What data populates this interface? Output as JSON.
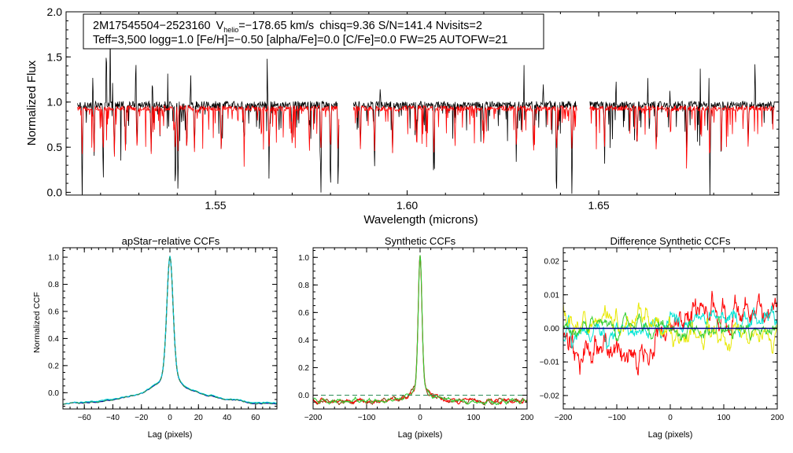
{
  "chart_data": [
    {
      "type": "line",
      "panel": "spectrum",
      "title": "",
      "xlabel": "Wavelength (microns)",
      "ylabel": "Normalized Flux",
      "xlim": [
        1.511,
        1.697
      ],
      "ylim": [
        -0.03,
        2.0
      ],
      "xticks": [
        1.55,
        1.6,
        1.65
      ],
      "xtick_labels": [
        "1.55",
        "1.60",
        "1.65"
      ],
      "yticks": [
        0.0,
        0.5,
        1.0,
        1.5,
        2.0
      ],
      "ytick_labels": [
        "0.0",
        "0.5",
        "1.0",
        "1.5",
        "2.0"
      ],
      "annotation": {
        "star_id": "2M17545504−2523160",
        "v_symbol": "V",
        "v_subscript": "helio",
        "v_value": "=−178.65 km/s",
        "rest_line1": "chisq=9.36  S/N=141.4  Nvisits=2",
        "line2": "Teff=3,500 logg=1.0 [Fe/H]=−0.50 [alpha/Fe]=0.0 [C/Fe]=0.0 FW=25 AUTOFW=21"
      },
      "chips": [
        [
          1.514,
          1.5822
        ],
        [
          1.586,
          1.6443
        ],
        [
          1.6477,
          1.6958
        ]
      ],
      "series": [
        {
          "name": "observed",
          "color": "#000000",
          "continuum": 0.97,
          "noise": 0.04
        },
        {
          "name": "model",
          "color": "#ff0000",
          "continuum": 0.93,
          "noise": 0.03
        }
      ],
      "absorption_lines": [
        {
          "x": 1.5152,
          "depth": 1.05
        },
        {
          "x": 1.5183,
          "depth": 0.6
        },
        {
          "x": 1.5207,
          "depth": 0.45
        },
        {
          "x": 1.5236,
          "depth": 0.55
        },
        {
          "x": 1.5265,
          "depth": 0.5
        },
        {
          "x": 1.5295,
          "depth": 0.45
        },
        {
          "x": 1.5332,
          "depth": 0.5
        },
        {
          "x": 1.5395,
          "depth": 1.05
        },
        {
          "x": 1.5402,
          "depth": 1.05
        },
        {
          "x": 1.5425,
          "depth": 0.55
        },
        {
          "x": 1.5445,
          "depth": 0.5
        },
        {
          "x": 1.5515,
          "depth": 0.55
        },
        {
          "x": 1.5575,
          "depth": 0.45
        },
        {
          "x": 1.564,
          "depth": 0.55
        },
        {
          "x": 1.57,
          "depth": 0.5
        },
        {
          "x": 1.5745,
          "depth": 0.6
        },
        {
          "x": 1.5775,
          "depth": 1.05
        },
        {
          "x": 1.58,
          "depth": 1.05
        },
        {
          "x": 1.582,
          "depth": 1.0
        },
        {
          "x": 1.5878,
          "depth": 0.45
        },
        {
          "x": 1.5915,
          "depth": 0.7
        },
        {
          "x": 1.5962,
          "depth": 0.5
        },
        {
          "x": 1.6025,
          "depth": 0.55
        },
        {
          "x": 1.607,
          "depth": 0.5
        },
        {
          "x": 1.6125,
          "depth": 0.45
        },
        {
          "x": 1.62,
          "depth": 0.45
        },
        {
          "x": 1.6285,
          "depth": 0.5
        },
        {
          "x": 1.633,
          "depth": 0.55
        },
        {
          "x": 1.639,
          "depth": 1.05
        },
        {
          "x": 1.643,
          "depth": 1.05
        },
        {
          "x": 1.6515,
          "depth": 0.55
        },
        {
          "x": 1.66,
          "depth": 0.5
        },
        {
          "x": 1.665,
          "depth": 0.55
        },
        {
          "x": 1.673,
          "depth": 0.5
        },
        {
          "x": 1.679,
          "depth": 1.05
        },
        {
          "x": 1.682,
          "depth": 0.5
        },
        {
          "x": 1.689,
          "depth": 0.45
        }
      ],
      "emission_spikes": [
        {
          "x": 1.518,
          "height": 0.43
        },
        {
          "x": 1.5215,
          "height": 0.88
        },
        {
          "x": 1.5225,
          "height": 1.08
        },
        {
          "x": 1.5232,
          "height": 0.65
        },
        {
          "x": 1.5292,
          "height": 0.75
        },
        {
          "x": 1.5335,
          "height": 0.38
        },
        {
          "x": 1.5375,
          "height": 0.45
        },
        {
          "x": 1.5435,
          "height": 0.45
        },
        {
          "x": 1.5635,
          "height": 0.65
        },
        {
          "x": 1.5745,
          "height": 0.62
        },
        {
          "x": 1.593,
          "height": 0.25
        },
        {
          "x": 1.6025,
          "height": 0.45
        },
        {
          "x": 1.6125,
          "height": 0.5
        },
        {
          "x": 1.6305,
          "height": 0.45
        },
        {
          "x": 1.6355,
          "height": 0.3
        },
        {
          "x": 1.6545,
          "height": 0.38
        },
        {
          "x": 1.6628,
          "height": 0.35
        },
        {
          "x": 1.6685,
          "height": 0.28
        },
        {
          "x": 1.6765,
          "height": 0.48
        },
        {
          "x": 1.6788,
          "height": 0.45
        },
        {
          "x": 1.6908,
          "height": 0.65
        }
      ]
    },
    {
      "type": "line",
      "panel": "apstar_ccf",
      "title": "apStar−relative CCFs",
      "xlabel": "Lag (pixels)",
      "ylabel": "Normalized CCF",
      "xlim": [
        -75,
        75
      ],
      "ylim": [
        -0.12,
        1.07
      ],
      "xticks": [
        -60,
        -40,
        -20,
        0,
        20,
        40,
        60
      ],
      "xtick_labels": [
        "−60",
        "−40",
        "−20",
        "0",
        "20",
        "40",
        "60"
      ],
      "yticks": [
        0.0,
        0.2,
        0.4,
        0.6,
        0.8,
        1.0
      ],
      "ytick_labels": [
        "0.0",
        "0.2",
        "0.4",
        "0.6",
        "0.8",
        "1.0"
      ],
      "peak": 1.0,
      "core_width": 2.2,
      "wing_width": 13,
      "baseline": -0.04,
      "series": [
        {
          "name": "ccf",
          "color": "#00008b",
          "style": "solid"
        },
        {
          "name": "visit 1",
          "color": "#00ced1",
          "style": "solid"
        },
        {
          "name": "visit 2",
          "color": "#2e8b57",
          "style": "dashed"
        }
      ]
    },
    {
      "type": "line",
      "panel": "synthetic_ccf",
      "title": "Synthetic CCFs",
      "xlabel": "Lag (pixels)",
      "ylabel": "",
      "xlim": [
        -200,
        200
      ],
      "ylim": [
        -0.1,
        1.07
      ],
      "xticks": [
        -200,
        -100,
        0,
        100,
        200
      ],
      "xtick_labels": [
        "−200",
        "−100",
        "0",
        "100",
        "200"
      ],
      "yticks": [
        0.0,
        0.2,
        0.4,
        0.6,
        0.8,
        1.0
      ],
      "ytick_labels": [
        "0.0",
        "0.2",
        "0.4",
        "0.6",
        "0.8",
        "1.0"
      ],
      "peak": 1.0,
      "core_width": 3.5,
      "wing_width": 30,
      "baseline": -0.05,
      "reference_line": 0.0,
      "series": [
        {
          "name": "combined",
          "color": "#8b4513",
          "style": "solid"
        },
        {
          "name": "visit 1",
          "color": "#ff0000",
          "style": "solid"
        },
        {
          "name": "visit 2",
          "color": "#32cd32",
          "style": "solid"
        },
        {
          "name": "zero",
          "color": "#2e8b57",
          "style": "dashed"
        }
      ]
    },
    {
      "type": "line",
      "panel": "difference_ccf",
      "title": "Difference Synthetic CCFs",
      "xlabel": "Lag (pixels)",
      "ylabel": "",
      "xlim": [
        -200,
        200
      ],
      "ylim": [
        -0.024,
        0.024
      ],
      "xticks": [
        -200,
        -100,
        0,
        100,
        200
      ],
      "xtick_labels": [
        "−200",
        "−100",
        "0",
        "100",
        "200"
      ],
      "yticks": [
        -0.02,
        -0.01,
        0.0,
        0.01,
        0.02
      ],
      "ytick_labels": [
        "−0.02",
        "−0.01",
        "0.00",
        "0.01",
        "0.02"
      ],
      "reference_line": 0.0,
      "series": [
        {
          "name": "red",
          "color": "#ff0000",
          "amplitude": 0.009
        },
        {
          "name": "cyan",
          "color": "#00e5d5",
          "amplitude": 0.005
        },
        {
          "name": "yellow",
          "color": "#e8e800",
          "amplitude": 0.006
        },
        {
          "name": "green",
          "color": "#32cd32",
          "amplitude": 0.004
        },
        {
          "name": "zero",
          "color": "#00008b",
          "amplitude": 0
        }
      ]
    }
  ]
}
